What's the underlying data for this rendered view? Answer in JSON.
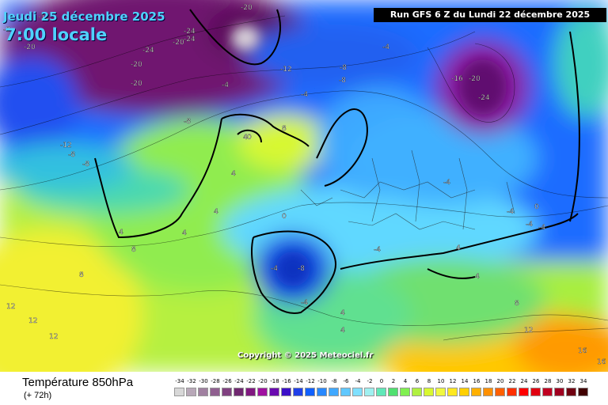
{
  "map": {
    "date_line": "Jeudi 25 décembre 2025",
    "time_line": "7:00 locale",
    "run_info": "Run GFS 6 Z du Lundi 22 décembre 2025",
    "copyright": "Copyright © 2025 Meteociel.fr",
    "parameter": "Température 850hPa",
    "lead_time": "(+ 72h)",
    "isotherm_labels": [
      {
        "v": "-20"
      },
      {
        "v": "-24"
      },
      {
        "v": "-24"
      },
      {
        "v": "-20"
      },
      {
        "v": "-20"
      },
      {
        "v": "-20"
      },
      {
        "v": "-12"
      },
      {
        "v": "-24"
      },
      {
        "v": "-20"
      },
      {
        "v": "-16"
      },
      {
        "v": "-20"
      },
      {
        "v": "-24"
      },
      {
        "v": "-8"
      },
      {
        "v": "-8"
      },
      {
        "v": "-4"
      },
      {
        "v": "-4"
      },
      {
        "v": "-8"
      },
      {
        "v": "-12"
      },
      {
        "v": "-8"
      },
      {
        "v": "-12"
      },
      {
        "v": "-8"
      },
      {
        "v": "-4"
      },
      {
        "v": "0"
      },
      {
        "v": "4"
      },
      {
        "v": "8"
      },
      {
        "v": "4"
      },
      {
        "v": "4"
      },
      {
        "v": "8"
      },
      {
        "v": "8"
      },
      {
        "v": "12"
      },
      {
        "v": "12"
      },
      {
        "v": "12"
      },
      {
        "v": "4"
      },
      {
        "v": "-4"
      },
      {
        "v": "-8"
      },
      {
        "v": "-4"
      },
      {
        "v": "4"
      },
      {
        "v": "4"
      },
      {
        "v": "8"
      },
      {
        "v": "12"
      },
      {
        "v": "16"
      },
      {
        "v": "16"
      },
      {
        "v": "-4"
      },
      {
        "v": "-4"
      },
      {
        "v": "0"
      },
      {
        "v": "4"
      },
      {
        "v": "-8"
      },
      {
        "v": "-4"
      },
      {
        "v": "4"
      },
      {
        "v": "-4"
      },
      {
        "v": "-4"
      },
      {
        "v": "0"
      },
      {
        "v": "4"
      }
    ],
    "legend_values": [
      "-34",
      "-32",
      "-30",
      "-28",
      "-26",
      "-24",
      "-22",
      "-20",
      "-18",
      "-16",
      "-14",
      "-12",
      "-10",
      "-8",
      "-6",
      "-4",
      "-2",
      "0",
      "2",
      "4",
      "6",
      "8",
      "10",
      "12",
      "14",
      "16",
      "18",
      "20",
      "22",
      "24",
      "26",
      "28",
      "30",
      "32",
      "34"
    ],
    "legend_colors": [
      "#d8d8d8",
      "#b8a8b8",
      "#a080a0",
      "#906090",
      "#804080",
      "#702870",
      "#801880",
      "#a010a0",
      "#6a0ab0",
      "#3c10c8",
      "#2040e8",
      "#1060ff",
      "#2888ff",
      "#40a8ff",
      "#60c8ff",
      "#80e0ff",
      "#a0f0f0",
      "#60e8b8",
      "#50e070",
      "#80f050",
      "#b0f040",
      "#d8f830",
      "#f0f840",
      "#ffe820",
      "#ffd000",
      "#ffb000",
      "#ff9000",
      "#ff6000",
      "#ff3000",
      "#ff0000",
      "#e00010",
      "#c00020",
      "#a00020",
      "#700010",
      "#400000"
    ]
  }
}
